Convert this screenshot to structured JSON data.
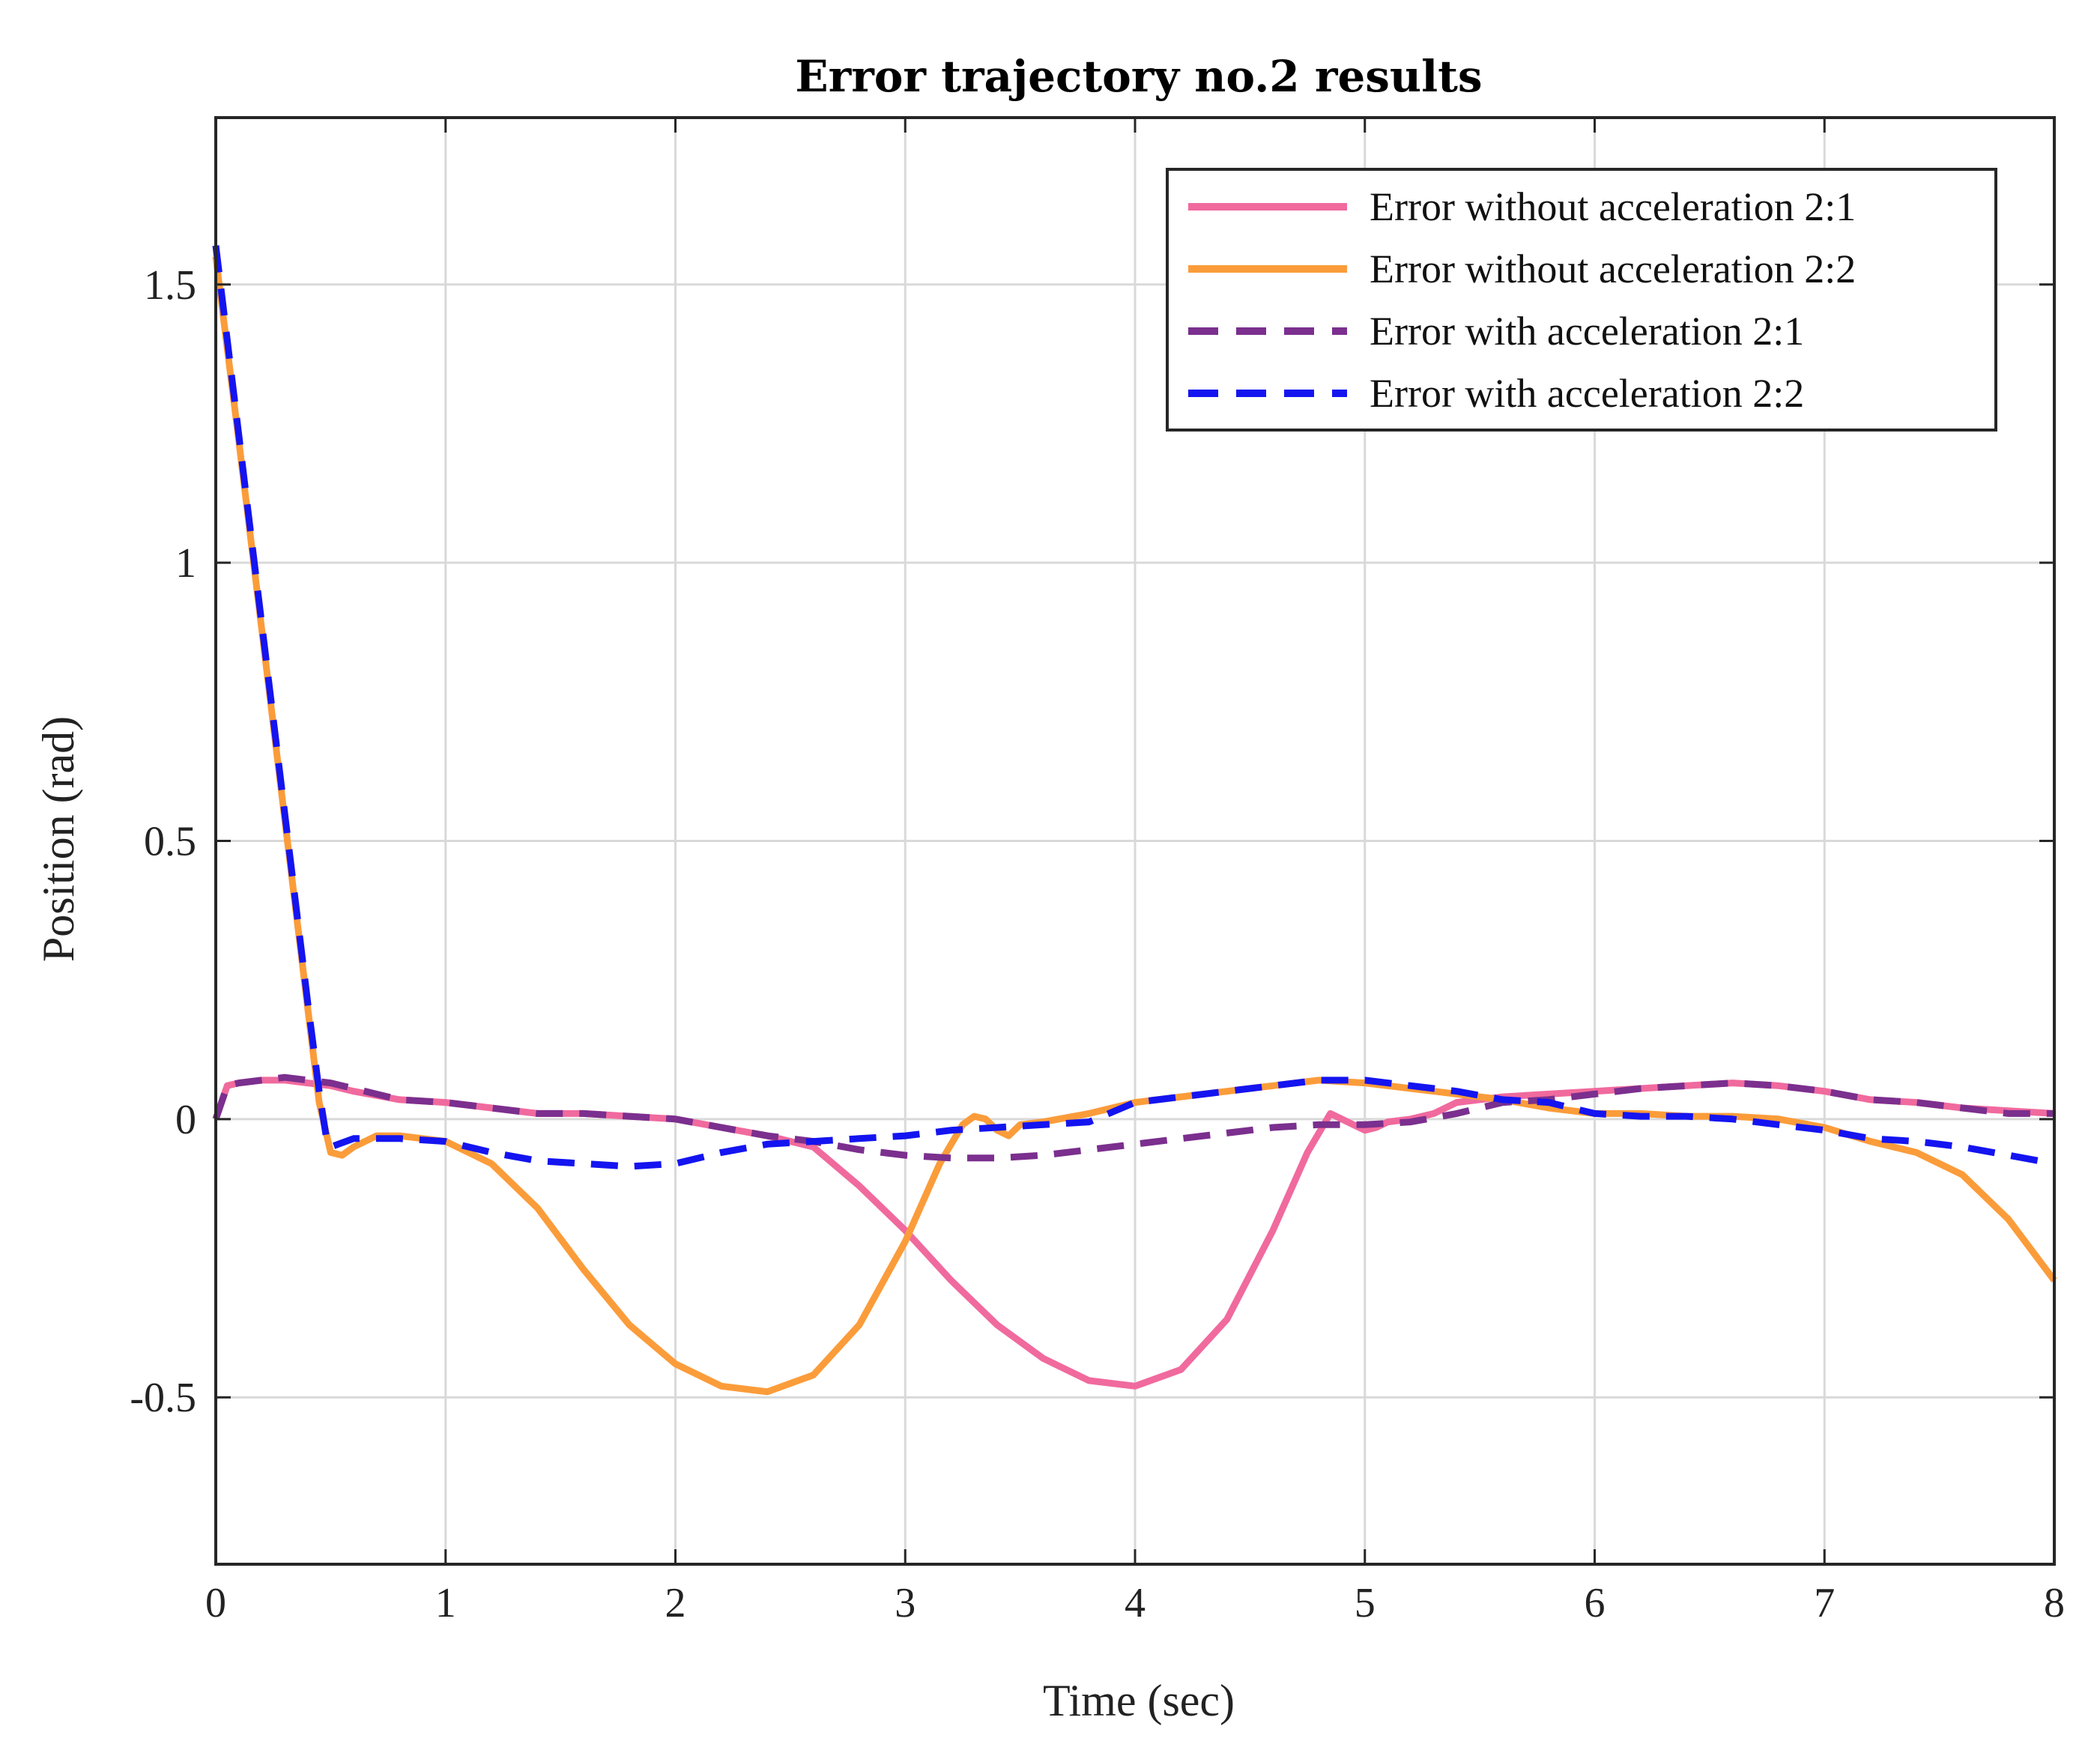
{
  "chart_data": {
    "type": "line",
    "title": "Error trajectory no.2 results",
    "xlabel": "Time (sec)",
    "ylabel": "Position (rad)",
    "xlim": [
      0,
      8
    ],
    "ylim": [
      -0.8,
      1.8
    ],
    "xticks": [
      0,
      1,
      2,
      3,
      4,
      5,
      6,
      7,
      8
    ],
    "yticks": [
      -0.5,
      0,
      0.5,
      1,
      1.5
    ],
    "ytick_labels": [
      "-0.5",
      "0",
      "0.5",
      "1",
      "1.5"
    ],
    "grid": true,
    "legend_position": "top-right",
    "series": [
      {
        "name": "Error without acceleration 2:1",
        "color": "#f06a9e",
        "style": "solid",
        "x": [
          0,
          0.05,
          0.1,
          0.2,
          0.3,
          0.4,
          0.5,
          0.6,
          0.8,
          1.0,
          1.2,
          1.4,
          1.6,
          1.8,
          2.0,
          2.2,
          2.4,
          2.6,
          2.8,
          3.0,
          3.2,
          3.4,
          3.6,
          3.8,
          4.0,
          4.2,
          4.4,
          4.6,
          4.75,
          4.85,
          4.95,
          5.0,
          5.05,
          5.1,
          5.2,
          5.3,
          5.4,
          5.6,
          5.8,
          6.0,
          6.2,
          6.4,
          6.6,
          6.8,
          7.0,
          7.2,
          7.4,
          7.6,
          7.8,
          8.0
        ],
        "y": [
          0.0,
          0.06,
          0.065,
          0.07,
          0.07,
          0.065,
          0.06,
          0.05,
          0.035,
          0.03,
          0.02,
          0.01,
          0.01,
          0.005,
          0.0,
          -0.015,
          -0.03,
          -0.05,
          -0.12,
          -0.2,
          -0.29,
          -0.37,
          -0.43,
          -0.47,
          -0.48,
          -0.45,
          -0.36,
          -0.2,
          -0.06,
          0.01,
          -0.01,
          -0.02,
          -0.015,
          -0.005,
          0.0,
          0.01,
          0.03,
          0.04,
          0.045,
          0.05,
          0.055,
          0.06,
          0.065,
          0.06,
          0.05,
          0.035,
          0.03,
          0.02,
          0.015,
          0.01
        ]
      },
      {
        "name": "Error without acceleration 2:2",
        "color": "#fb9c3a",
        "style": "solid",
        "x": [
          0,
          0.1,
          0.2,
          0.3,
          0.4,
          0.45,
          0.5,
          0.55,
          0.6,
          0.7,
          0.8,
          1.0,
          1.2,
          1.4,
          1.6,
          1.8,
          2.0,
          2.2,
          2.4,
          2.6,
          2.8,
          3.0,
          3.15,
          3.25,
          3.3,
          3.35,
          3.4,
          3.45,
          3.5,
          3.6,
          3.8,
          4.0,
          4.2,
          4.4,
          4.6,
          4.8,
          5.0,
          5.2,
          5.4,
          5.6,
          5.8,
          6.0,
          6.2,
          6.4,
          6.6,
          6.8,
          7.0,
          7.2,
          7.4,
          7.6,
          7.8,
          8.0
        ],
        "y": [
          1.55,
          1.22,
          0.88,
          0.54,
          0.2,
          0.03,
          -0.06,
          -0.065,
          -0.05,
          -0.03,
          -0.03,
          -0.04,
          -0.08,
          -0.16,
          -0.27,
          -0.37,
          -0.44,
          -0.48,
          -0.49,
          -0.46,
          -0.37,
          -0.22,
          -0.08,
          -0.01,
          0.005,
          0.0,
          -0.02,
          -0.03,
          -0.01,
          -0.005,
          0.01,
          0.03,
          0.04,
          0.05,
          0.06,
          0.07,
          0.065,
          0.055,
          0.045,
          0.035,
          0.02,
          0.01,
          0.01,
          0.005,
          0.005,
          0.0,
          -0.015,
          -0.04,
          -0.06,
          -0.1,
          -0.18,
          -0.29
        ]
      },
      {
        "name": "Error with acceleration 2:1",
        "color": "#7b2f8e",
        "style": "dashed",
        "x": [
          0,
          0.05,
          0.1,
          0.2,
          0.3,
          0.4,
          0.5,
          0.6,
          0.8,
          1.0,
          1.2,
          1.4,
          1.6,
          1.8,
          2.0,
          2.2,
          2.4,
          2.6,
          2.8,
          3.0,
          3.2,
          3.4,
          3.6,
          3.8,
          4.0,
          4.2,
          4.4,
          4.6,
          4.8,
          5.0,
          5.2,
          5.4,
          5.6,
          5.8,
          6.0,
          6.2,
          6.4,
          6.6,
          6.8,
          7.0,
          7.2,
          7.4,
          7.6,
          7.8,
          8.0
        ],
        "y": [
          0.0,
          0.06,
          0.065,
          0.07,
          0.075,
          0.07,
          0.065,
          0.055,
          0.035,
          0.03,
          0.02,
          0.01,
          0.01,
          0.005,
          0.0,
          -0.015,
          -0.03,
          -0.04,
          -0.055,
          -0.065,
          -0.07,
          -0.07,
          -0.065,
          -0.055,
          -0.045,
          -0.035,
          -0.025,
          -0.015,
          -0.01,
          -0.01,
          -0.005,
          0.01,
          0.03,
          0.035,
          0.045,
          0.055,
          0.06,
          0.065,
          0.06,
          0.05,
          0.035,
          0.03,
          0.02,
          0.01,
          0.01
        ]
      },
      {
        "name": "Error with acceleration 2:2",
        "color": "#1414f0",
        "style": "dashed",
        "x": [
          0,
          0.1,
          0.2,
          0.3,
          0.4,
          0.45,
          0.48,
          0.5,
          0.6,
          0.8,
          1.0,
          1.2,
          1.4,
          1.6,
          1.8,
          2.0,
          2.2,
          2.4,
          2.6,
          2.8,
          3.0,
          3.2,
          3.4,
          3.6,
          3.8,
          4.0,
          4.2,
          4.4,
          4.6,
          4.8,
          5.0,
          5.2,
          5.4,
          5.6,
          5.8,
          6.0,
          6.2,
          6.4,
          6.6,
          6.8,
          7.0,
          7.2,
          7.4,
          7.6,
          7.8,
          8.0
        ],
        "y": [
          1.57,
          1.23,
          0.89,
          0.55,
          0.21,
          0.05,
          -0.03,
          -0.05,
          -0.035,
          -0.035,
          -0.04,
          -0.06,
          -0.075,
          -0.08,
          -0.085,
          -0.08,
          -0.06,
          -0.045,
          -0.04,
          -0.035,
          -0.03,
          -0.02,
          -0.015,
          -0.01,
          -0.005,
          0.03,
          0.04,
          0.05,
          0.06,
          0.07,
          0.07,
          0.06,
          0.05,
          0.035,
          0.03,
          0.01,
          0.005,
          0.005,
          0.0,
          -0.01,
          -0.02,
          -0.035,
          -0.04,
          -0.05,
          -0.065,
          -0.08
        ]
      }
    ]
  }
}
